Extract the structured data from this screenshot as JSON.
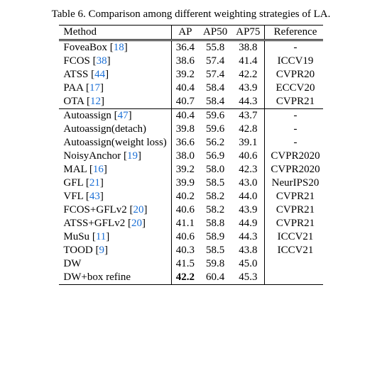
{
  "caption": "Table 6. Comparison among different weighting strategies of LA.",
  "columns": [
    "Method",
    "AP",
    "AP50",
    "AP75",
    "Reference"
  ],
  "link_color": "#1a6fd6",
  "rows_group1": [
    {
      "method": "FoveaBox",
      "cite": "18",
      "ap": "36.4",
      "ap50": "55.8",
      "ap75": "38.8",
      "ref": "-"
    },
    {
      "method": "FCOS",
      "cite": "38",
      "ap": "38.6",
      "ap50": "57.4",
      "ap75": "41.4",
      "ref": "ICCV19"
    },
    {
      "method": "ATSS",
      "cite": "44",
      "ap": "39.2",
      "ap50": "57.4",
      "ap75": "42.2",
      "ref": "CVPR20"
    },
    {
      "method": "PAA",
      "cite": "17",
      "ap": "40.4",
      "ap50": "58.4",
      "ap75": "43.9",
      "ref": "ECCV20"
    },
    {
      "method": "OTA",
      "cite": "12",
      "ap": "40.7",
      "ap50": "58.4",
      "ap75": "44.3",
      "ref": "CVPR21"
    }
  ],
  "rows_group2": [
    {
      "method": "Autoassign",
      "cite": "47",
      "ap": "40.4",
      "ap50": "59.6",
      "ap75": "43.7",
      "ref": "-"
    },
    {
      "method": "Autoassign(detach)",
      "cite": "",
      "ap": "39.8",
      "ap50": "59.6",
      "ap75": "42.8",
      "ref": "-"
    },
    {
      "method": "Autoassign(weight loss)",
      "cite": "",
      "ap": "36.6",
      "ap50": "56.2",
      "ap75": "39.1",
      "ref": "-"
    },
    {
      "method": "NoisyAnchor",
      "cite": "19",
      "ap": "38.0",
      "ap50": "56.9",
      "ap75": "40.6",
      "ref": "CVPR2020"
    },
    {
      "method": "MAL",
      "cite": "16",
      "ap": "39.2",
      "ap50": "58.0",
      "ap75": "42.3",
      "ref": "CVPR2020"
    },
    {
      "method": "GFL",
      "cite": "21",
      "ap": "39.9",
      "ap50": "58.5",
      "ap75": "43.0",
      "ref": "NeurIPS20"
    },
    {
      "method": "VFL",
      "cite": "43",
      "ap": "40.2",
      "ap50": "58.2",
      "ap75": "44.0",
      "ref": "CVPR21"
    },
    {
      "method": "FCOS+GFLv2",
      "cite": "20",
      "ap": "40.6",
      "ap50": "58.2",
      "ap75": "43.9",
      "ref": "CVPR21"
    },
    {
      "method": "ATSS+GFLv2",
      "cite": "20",
      "ap": "41.1",
      "ap50": "58.8",
      "ap75": "44.9",
      "ref": "CVPR21"
    },
    {
      "method": "MuSu",
      "cite": "11",
      "ap": "40.6",
      "ap50": "58.9",
      "ap75": "44.3",
      "ref": "ICCV21"
    },
    {
      "method": "TOOD",
      "cite": "9",
      "ap": "40.3",
      "ap50": "58.5",
      "ap75": "43.8",
      "ref": "ICCV21"
    },
    {
      "method": "DW",
      "cite": "",
      "ap": "41.5",
      "ap50": "59.8",
      "ap75": "45.0",
      "ref": ""
    },
    {
      "method": "DW+box refine",
      "cite": "",
      "ap": "42.2",
      "ap50": "60.4",
      "ap75": "45.3",
      "ref": "",
      "bold_ap": true
    }
  ]
}
